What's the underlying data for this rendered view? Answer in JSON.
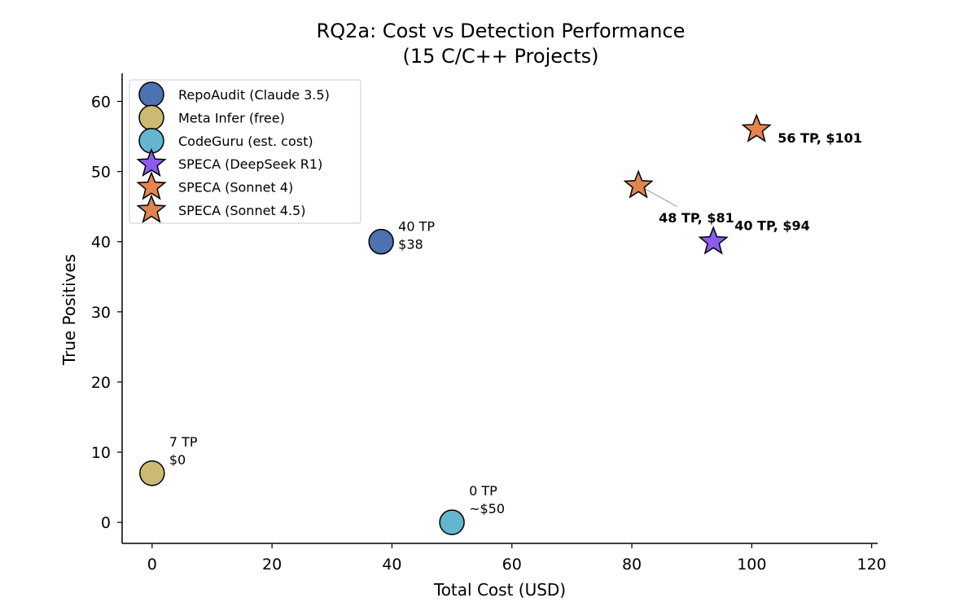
{
  "chart_data": {
    "type": "scatter",
    "title": [
      "RQ2a: Cost vs Detection Performance",
      "(15 C/C++ Projects)"
    ],
    "xlabel": "Total Cost (USD)",
    "ylabel": "True Positives",
    "xlim": [
      -5,
      121
    ],
    "ylim": [
      -3,
      64
    ],
    "xticks": [
      0,
      20,
      40,
      60,
      80,
      100,
      120
    ],
    "yticks": [
      0,
      10,
      20,
      30,
      40,
      50,
      60
    ],
    "grid": false,
    "legend_position": "top-left",
    "series": [
      {
        "name": "RepoAudit (Claude 3.5)",
        "marker": "circle",
        "color": "#4c72b0",
        "points": [
          {
            "x": 38.2,
            "y": 40
          }
        ],
        "annotation": [
          "40 TP",
          "$38"
        ],
        "bold": false
      },
      {
        "name": "Meta Infer (free)",
        "marker": "circle",
        "color": "#ccb974",
        "points": [
          {
            "x": 0,
            "y": 7
          }
        ],
        "annotation": [
          "7 TP",
          "$0"
        ],
        "bold": false
      },
      {
        "name": "CodeGuru (est. cost)",
        "marker": "circle",
        "color": "#64b5cd",
        "points": [
          {
            "x": 50,
            "y": 0
          }
        ],
        "annotation": [
          "0 TP",
          "~$50"
        ],
        "bold": false
      },
      {
        "name": "SPECA (DeepSeek R1)",
        "marker": "star",
        "color": "#8c5cf0",
        "points": [
          {
            "x": 93.6,
            "y": 40
          }
        ],
        "annotation": [
          "40 TP, $94"
        ],
        "bold": true
      },
      {
        "name": "SPECA (Sonnet 4)",
        "marker": "star",
        "color": "#e8834f",
        "points": [
          {
            "x": 100.8,
            "y": 56
          }
        ],
        "annotation": [
          "56 TP, $101"
        ],
        "bold": true
      },
      {
        "name": "SPECA (Sonnet 4.5)",
        "marker": "star",
        "color": "#e08550",
        "points": [
          {
            "x": 81.1,
            "y": 48
          }
        ],
        "annotation": [
          "48 TP, $81"
        ],
        "bold": true
      }
    ]
  }
}
